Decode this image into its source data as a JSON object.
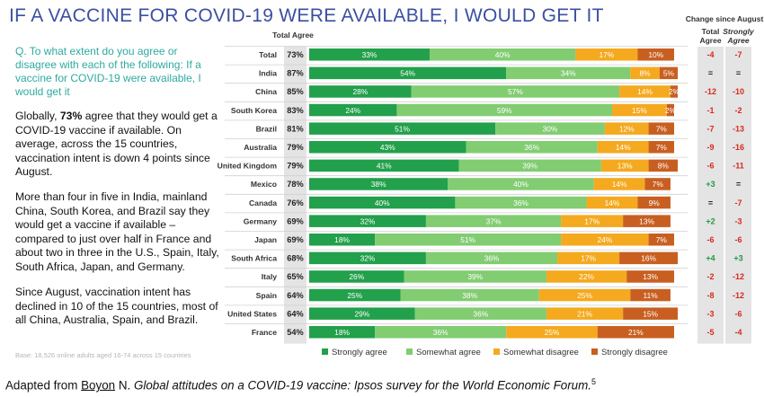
{
  "title": "IF A VACCINE FOR COVID-19 WERE AVAILABLE, I WOULD GET IT",
  "question": "Q. To what extent do you agree or disagree with each of the following: If a vaccine for COVID-19 were available, I would get it",
  "paragraphs": {
    "p1_pre": "Globally, ",
    "p1_bold": "73%",
    "p1_post": " agree that they would get a COVID-19 vaccine if available. On average, across the 15 countries, vaccination intent is down 4 points since August.",
    "p2": "More than four in five in India, mainland China, South Korea, and Brazil say they would get a vaccine if available – compared to just over half in France and about two in three in the U.S., Spain, Italy, South Africa, Japan, and Germany.",
    "p3": "Since August, vaccination intent has declined in 10 of the 15 countries, most of all China, Australia, Spain, and Brazil."
  },
  "base_note": "Base: 18,526 online adults aged 16-74 across 15 countries",
  "source": {
    "pre": "Adapted from ",
    "author": "Boyon",
    "initial": " N. ",
    "italic": "Global attitudes on a COVID-19 vaccine: Ipsos survey for the World Economic Forum.",
    "ref": "5"
  },
  "colors": {
    "strongly_agree": "#22a04b",
    "somewhat_agree": "#82cc72",
    "somewhat_disagree": "#f4a91e",
    "strongly_disagree": "#c85f20",
    "total_agree_bg": "#e4e4e4",
    "change_bg": "#e4e4e4",
    "positive": "#1f9a46",
    "negative": "#d62b1f",
    "title": "#3b4fa0",
    "question": "#2eaaa0"
  },
  "chart_data": {
    "type": "bar",
    "orientation": "horizontal",
    "stacked": true,
    "xlim": [
      0,
      100
    ],
    "total_agree_header": "Total Agree",
    "change_header": "Change since August",
    "change_subheaders": [
      "Total Agree",
      "Strongly Agree"
    ],
    "categories": [
      "Total",
      "India",
      "China",
      "South Korea",
      "Brazil",
      "Australia",
      "United Kingdom",
      "Mexico",
      "Canada",
      "Germany",
      "Japan",
      "South Africa",
      "Italy",
      "Spain",
      "United States",
      "France"
    ],
    "total_agree": [
      "73%",
      "87%",
      "85%",
      "83%",
      "81%",
      "79%",
      "79%",
      "78%",
      "76%",
      "69%",
      "69%",
      "68%",
      "65%",
      "64%",
      "64%",
      "54%"
    ],
    "series": [
      {
        "name": "Strongly agree",
        "values": [
          33,
          54,
          28,
          24,
          51,
          43,
          41,
          38,
          40,
          32,
          18,
          32,
          26,
          25,
          29,
          18
        ]
      },
      {
        "name": "Somewhat agree",
        "values": [
          40,
          34,
          57,
          59,
          30,
          36,
          39,
          40,
          36,
          37,
          51,
          36,
          39,
          38,
          36,
          36
        ]
      },
      {
        "name": "Somewhat disagree",
        "values": [
          17,
          8,
          14,
          15,
          12,
          14,
          13,
          14,
          14,
          17,
          24,
          17,
          22,
          25,
          21,
          25
        ]
      },
      {
        "name": "Strongly disagree",
        "values": [
          10,
          5,
          2,
          2,
          7,
          7,
          8,
          7,
          9,
          13,
          7,
          16,
          13,
          11,
          15,
          21
        ]
      }
    ],
    "change_total_agree": [
      "-4",
      "=",
      "-12",
      "-1",
      "-7",
      "-9",
      "-6",
      "+3",
      "=",
      "+2",
      "-6",
      "+4",
      "-2",
      "-8",
      "-3",
      "-5"
    ],
    "change_strongly_agree": [
      "-7",
      "=",
      "-10",
      "-2",
      "-13",
      "-16",
      "-11",
      "=",
      "-7",
      "-3",
      "-6",
      "+3",
      "-12",
      "-12",
      "-6",
      "-4"
    ],
    "legend": [
      "Strongly agree",
      "Somewhat agree",
      "Somewhat disagree",
      "Strongly disagree"
    ],
    "legend_position": "bottom"
  }
}
